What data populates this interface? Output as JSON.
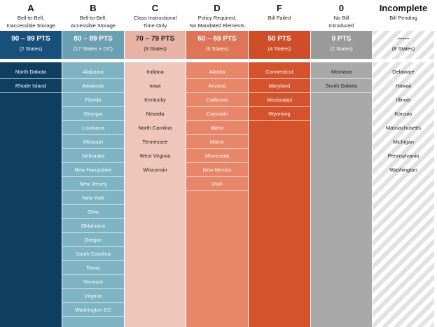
{
  "columns": [
    {
      "grade": "A",
      "desc": [
        "Bell-to-Bell,",
        "Inaccessible Storage"
      ],
      "points": "90 – 99 PTS",
      "count": "(2 States)",
      "states": [
        "North Dakota",
        "Rhode Island"
      ]
    },
    {
      "grade": "B",
      "desc": [
        "Bell-to-Bell,",
        "Accessible Storage"
      ],
      "points": "80 – 89 PTS",
      "count": "(17 States + DC)",
      "states": [
        "Alabama",
        "Arkansas",
        "Florida",
        "Georgia",
        "Louisiana",
        "Missouri",
        "Nebraska",
        "New Hampshire",
        "New Jersey",
        "New York",
        "Ohio",
        "Oklahoma",
        "Oregon",
        "South Carolina",
        "Texas",
        "Vermont",
        "Virginia",
        "Washington DC"
      ]
    },
    {
      "grade": "C",
      "desc": [
        "Class Instructional",
        "Time Only"
      ],
      "points": "70 – 79 PTS",
      "count": "(8 States)",
      "states": [
        "Indiana",
        "Iowa",
        "Kentucky",
        "Nevada",
        "North Carolina",
        "Tennessee",
        "West Virginia",
        "Wisconsin"
      ]
    },
    {
      "grade": "D",
      "desc": [
        "Policy Required,",
        "No Mandated Elements"
      ],
      "points": "60 – 69 PTS",
      "count": "(9 States)",
      "states": [
        "Alaska",
        "Arizona",
        "California",
        "Colorado",
        "Idaho",
        "Maine",
        "Minnesota",
        "New Mexico",
        "Utah"
      ]
    },
    {
      "grade": "F",
      "desc": [
        "Bill Failed"
      ],
      "points": "50 PTS",
      "count": "(4 States)",
      "states": [
        "Connecticut",
        "Maryland",
        "Mississippi",
        "Wyoming"
      ]
    },
    {
      "grade": "0",
      "desc": [
        "No Bill",
        "Introduced"
      ],
      "points": "0 PTS",
      "count": "(2 States)",
      "states": [
        "Montana",
        "South Dakota"
      ]
    },
    {
      "grade": "Incomplete",
      "desc": [
        "Bill Pending"
      ],
      "points": "-----",
      "count": "(8 States)",
      "states": [
        "Delaware",
        "Hawaii",
        "Illinois",
        "Kansas",
        "Massachusetts",
        "Michigan",
        "Pennsylvania",
        "Washington"
      ]
    }
  ]
}
